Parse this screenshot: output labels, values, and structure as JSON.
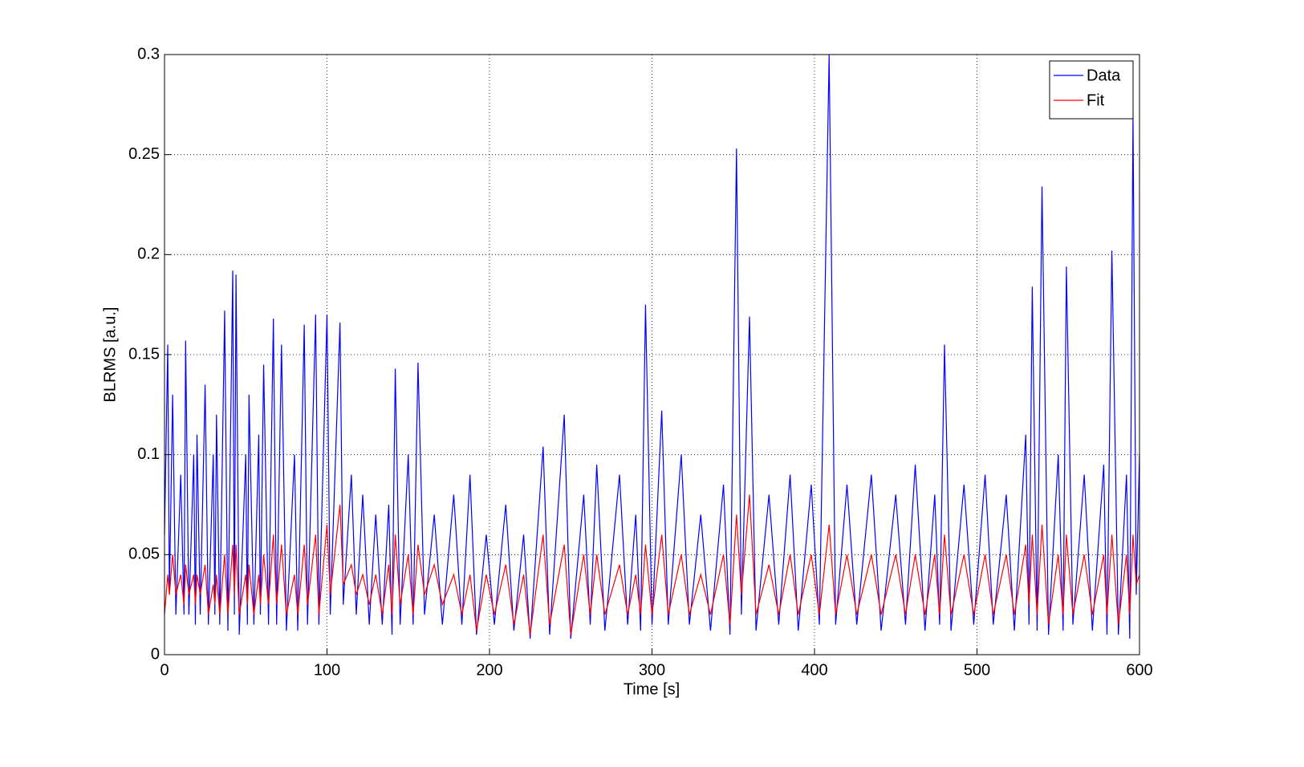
{
  "chart_data": {
    "type": "line",
    "xlabel": "Time [s]",
    "ylabel": "BLRMS [a.u.]",
    "xlim": [
      0,
      600
    ],
    "ylim": [
      0,
      0.3
    ],
    "xticks": [
      0,
      100,
      200,
      300,
      400,
      500,
      600
    ],
    "yticks": [
      0,
      0.05,
      0.1,
      0.15,
      0.2,
      0.25,
      0.3
    ],
    "grid": true,
    "legend": "northeast",
    "x": [
      0,
      2,
      3,
      5,
      7,
      10,
      12,
      13,
      15,
      18,
      19,
      20,
      22,
      25,
      27,
      30,
      31,
      32,
      34,
      37,
      39,
      42,
      43,
      44,
      46,
      50,
      51,
      52,
      55,
      58,
      59,
      61,
      64,
      67,
      69,
      72,
      75,
      80,
      82,
      86,
      88,
      93,
      95,
      100,
      102,
      108,
      110,
      115,
      118,
      122,
      126,
      130,
      134,
      138,
      140,
      142,
      145,
      150,
      153,
      156,
      160,
      166,
      171,
      178,
      183,
      188,
      192,
      198,
      203,
      210,
      215,
      221,
      225,
      233,
      237,
      246,
      250,
      258,
      262,
      266,
      271,
      280,
      285,
      290,
      293,
      296,
      300,
      306,
      310,
      318,
      323,
      330,
      336,
      344,
      348,
      352,
      355,
      360,
      364,
      372,
      378,
      385,
      390,
      398,
      403,
      409,
      413,
      420,
      426,
      435,
      441,
      450,
      456,
      462,
      468,
      474,
      477,
      480,
      484,
      492,
      498,
      505,
      510,
      518,
      523,
      530,
      532,
      534,
      537,
      540,
      544,
      550,
      553,
      555,
      559,
      566,
      571,
      578,
      580,
      583,
      587,
      592,
      594,
      596,
      598,
      600
    ],
    "series": [
      {
        "name": "Data",
        "color": "#0000ff",
        "values": [
          0.06,
          0.155,
          0.03,
          0.13,
          0.02,
          0.09,
          0.02,
          0.157,
          0.02,
          0.1,
          0.015,
          0.11,
          0.02,
          0.135,
          0.015,
          0.1,
          0.02,
          0.12,
          0.015,
          0.172,
          0.012,
          0.192,
          0.02,
          0.19,
          0.01,
          0.1,
          0.015,
          0.13,
          0.015,
          0.11,
          0.02,
          0.145,
          0.015,
          0.168,
          0.015,
          0.155,
          0.012,
          0.1,
          0.012,
          0.165,
          0.015,
          0.17,
          0.015,
          0.17,
          0.02,
          0.166,
          0.025,
          0.09,
          0.02,
          0.08,
          0.015,
          0.07,
          0.015,
          0.075,
          0.01,
          0.143,
          0.015,
          0.1,
          0.015,
          0.146,
          0.02,
          0.07,
          0.015,
          0.08,
          0.015,
          0.09,
          0.01,
          0.06,
          0.015,
          0.075,
          0.012,
          0.06,
          0.008,
          0.104,
          0.01,
          0.12,
          0.008,
          0.08,
          0.015,
          0.095,
          0.012,
          0.09,
          0.015,
          0.07,
          0.012,
          0.175,
          0.015,
          0.122,
          0.015,
          0.1,
          0.015,
          0.07,
          0.012,
          0.085,
          0.01,
          0.253,
          0.02,
          0.169,
          0.012,
          0.08,
          0.015,
          0.09,
          0.012,
          0.085,
          0.015,
          0.3,
          0.015,
          0.085,
          0.015,
          0.09,
          0.012,
          0.08,
          0.015,
          0.095,
          0.012,
          0.08,
          0.015,
          0.155,
          0.012,
          0.085,
          0.015,
          0.09,
          0.015,
          0.08,
          0.012,
          0.11,
          0.015,
          0.184,
          0.012,
          0.234,
          0.01,
          0.1,
          0.012,
          0.194,
          0.015,
          0.09,
          0.012,
          0.095,
          0.01,
          0.202,
          0.01,
          0.09,
          0.008,
          0.27,
          0.03,
          0.1
        ]
      },
      {
        "name": "Fit",
        "color": "#ff0000",
        "values": [
          0.02,
          0.04,
          0.03,
          0.05,
          0.03,
          0.04,
          0.025,
          0.045,
          0.03,
          0.04,
          0.025,
          0.04,
          0.03,
          0.045,
          0.02,
          0.035,
          0.025,
          0.04,
          0.02,
          0.05,
          0.02,
          0.055,
          0.03,
          0.055,
          0.02,
          0.04,
          0.025,
          0.045,
          0.02,
          0.04,
          0.025,
          0.05,
          0.025,
          0.06,
          0.025,
          0.055,
          0.02,
          0.04,
          0.02,
          0.055,
          0.025,
          0.06,
          0.02,
          0.065,
          0.03,
          0.075,
          0.035,
          0.045,
          0.03,
          0.04,
          0.025,
          0.04,
          0.02,
          0.045,
          0.02,
          0.06,
          0.025,
          0.05,
          0.02,
          0.055,
          0.03,
          0.045,
          0.025,
          0.04,
          0.02,
          0.04,
          0.012,
          0.04,
          0.02,
          0.045,
          0.015,
          0.04,
          0.01,
          0.06,
          0.015,
          0.055,
          0.01,
          0.05,
          0.02,
          0.05,
          0.02,
          0.045,
          0.02,
          0.04,
          0.02,
          0.055,
          0.02,
          0.06,
          0.02,
          0.05,
          0.02,
          0.04,
          0.02,
          0.05,
          0.015,
          0.07,
          0.03,
          0.08,
          0.02,
          0.045,
          0.02,
          0.05,
          0.02,
          0.05,
          0.02,
          0.065,
          0.02,
          0.05,
          0.02,
          0.05,
          0.02,
          0.05,
          0.02,
          0.05,
          0.02,
          0.05,
          0.02,
          0.06,
          0.02,
          0.05,
          0.02,
          0.05,
          0.02,
          0.05,
          0.02,
          0.055,
          0.025,
          0.06,
          0.02,
          0.065,
          0.015,
          0.05,
          0.02,
          0.06,
          0.02,
          0.05,
          0.02,
          0.05,
          0.02,
          0.06,
          0.015,
          0.05,
          0.02,
          0.06,
          0.035,
          0.04
        ]
      }
    ]
  }
}
